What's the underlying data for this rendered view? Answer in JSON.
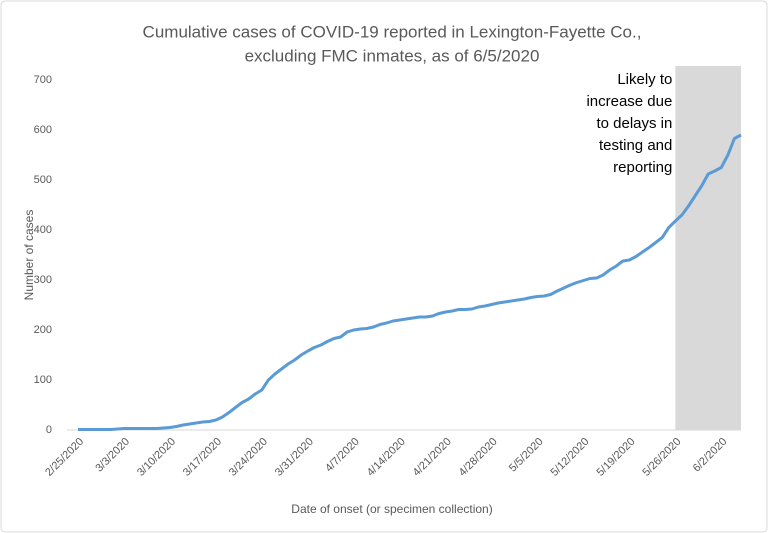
{
  "chart_data": {
    "type": "line",
    "title": [
      "Cumulative cases of COVID-19 reported in Lexington-Fayette Co.,",
      "excluding FMC inmates, as of 6/5/2020"
    ],
    "x_label": "Date of onset (or specimen collection)",
    "y_label": "Number of cases",
    "categories": [
      "2/25/2020",
      null,
      null,
      null,
      null,
      null,
      null,
      "3/3/2020",
      null,
      null,
      null,
      null,
      null,
      null,
      "3/10/2020",
      null,
      null,
      null,
      null,
      null,
      null,
      "3/17/2020",
      null,
      null,
      null,
      null,
      null,
      null,
      "3/24/2020",
      null,
      null,
      null,
      null,
      null,
      null,
      "3/31/2020",
      null,
      null,
      null,
      null,
      null,
      null,
      "4/7/2020",
      null,
      null,
      null,
      null,
      null,
      null,
      "4/14/2020",
      null,
      null,
      null,
      null,
      null,
      null,
      "4/21/2020",
      null,
      null,
      null,
      null,
      null,
      null,
      "4/28/2020",
      null,
      null,
      null,
      null,
      null,
      null,
      "5/5/2020",
      null,
      null,
      null,
      null,
      null,
      null,
      "5/12/2020",
      null,
      null,
      null,
      null,
      null,
      null,
      "5/19/2020",
      null,
      null,
      null,
      null,
      null,
      null,
      "5/26/2020",
      null,
      null,
      null,
      null,
      null,
      null,
      "6/2/2020",
      null,
      null,
      null
    ],
    "series": [
      {
        "color": "#5b9bd5",
        "values": [
          1,
          1,
          1,
          1,
          1,
          1,
          2,
          3,
          3,
          3,
          3,
          3,
          3,
          4,
          5,
          7,
          10,
          12,
          14,
          16,
          17,
          20,
          26,
          35,
          45,
          55,
          62,
          72,
          80,
          100,
          112,
          122,
          132,
          140,
          150,
          158,
          165,
          170,
          177,
          183,
          186,
          196,
          200,
          202,
          203,
          206,
          211,
          214,
          218,
          220,
          222,
          224,
          226,
          226,
          228,
          233,
          236,
          238,
          241,
          241,
          242,
          246,
          248,
          251,
          254,
          256,
          258,
          260,
          262,
          265,
          267,
          268,
          271,
          278,
          284,
          290,
          295,
          299,
          303,
          304,
          310,
          320,
          328,
          338,
          340,
          347,
          356,
          365,
          375,
          385,
          405,
          418,
          430,
          448,
          468,
          488,
          512,
          518,
          525,
          550,
          583,
          590
        ]
      }
    ],
    "ylim": [
      0,
      700
    ],
    "yticks": [
      0,
      100,
      200,
      300,
      400,
      500,
      600,
      700
    ],
    "annotation": {
      "text": [
        "Likely to",
        "increase due",
        "to delays in",
        "testing and",
        "reporting"
      ],
      "x_start": "5/26/2020",
      "color": "#d9d9d9"
    }
  }
}
